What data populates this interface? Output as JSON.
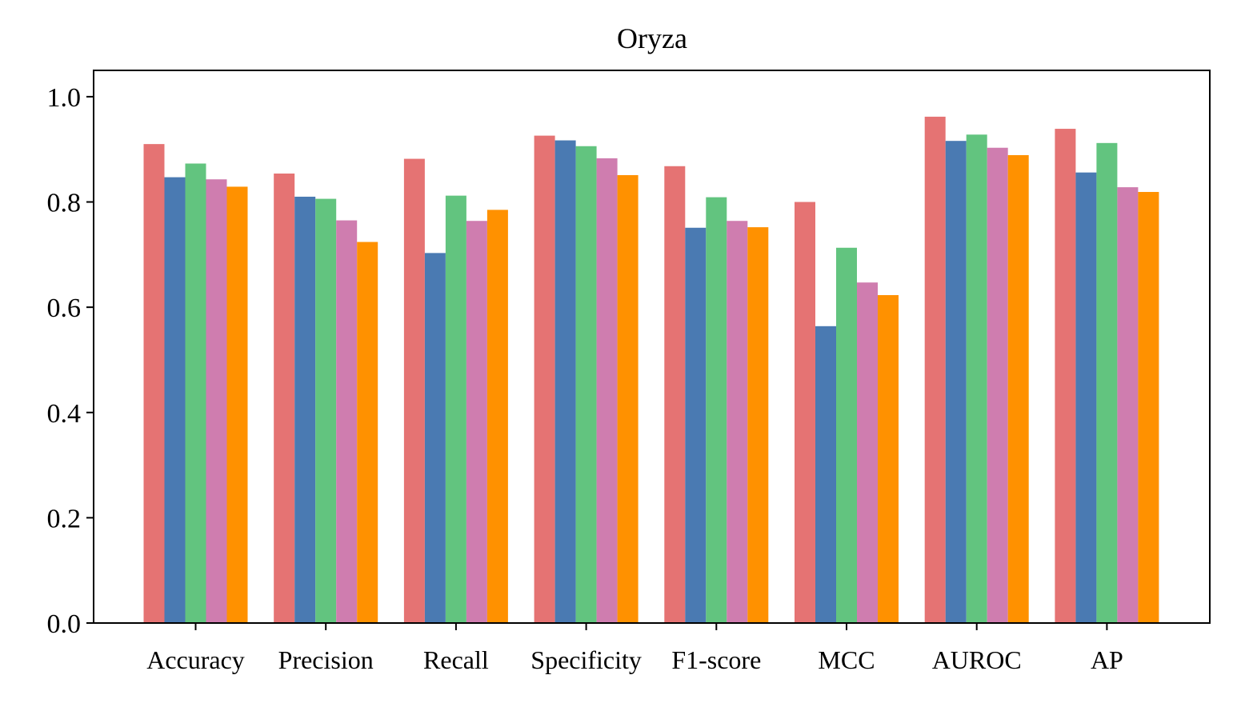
{
  "chart_data": {
    "type": "bar",
    "title": "Oryza",
    "xlabel": "",
    "ylabel": "",
    "ylim": [
      0,
      1.05
    ],
    "yticks": [
      "0.0",
      "0.2",
      "0.4",
      "0.6",
      "0.8",
      "1.0"
    ],
    "ytick_values": [
      0.0,
      0.2,
      0.4,
      0.6,
      0.8,
      1.0
    ],
    "grid": false,
    "legend": "none",
    "categories": [
      "Accuracy",
      "Precision",
      "Recall",
      "Specificity",
      "F1-score",
      "MCC",
      "AUROC",
      "AP"
    ],
    "series": [
      {
        "color": "#E57373",
        "values": [
          0.91,
          0.854,
          0.882,
          0.926,
          0.868,
          0.8,
          0.962,
          0.939
        ]
      },
      {
        "color": "#4A7AB2",
        "values": [
          0.847,
          0.81,
          0.703,
          0.917,
          0.751,
          0.564,
          0.916,
          0.856
        ]
      },
      {
        "color": "#62C47F",
        "values": [
          0.873,
          0.806,
          0.812,
          0.906,
          0.809,
          0.713,
          0.928,
          0.912
        ]
      },
      {
        "color": "#CF7DAF",
        "values": [
          0.843,
          0.765,
          0.764,
          0.883,
          0.764,
          0.647,
          0.903,
          0.828
        ]
      },
      {
        "color": "#FF9100",
        "values": [
          0.829,
          0.724,
          0.785,
          0.851,
          0.752,
          0.623,
          0.889,
          0.819
        ]
      }
    ]
  }
}
